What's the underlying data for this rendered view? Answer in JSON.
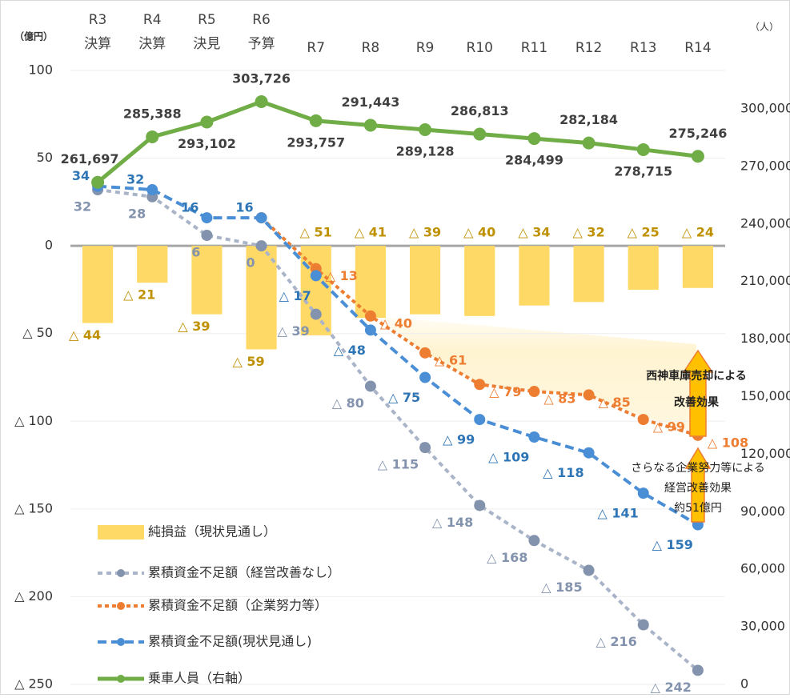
{
  "chart_data": {
    "type": "combo",
    "unit_left": "（億円）",
    "unit_right": "（人）",
    "categories": [
      "R3",
      "R4",
      "R5",
      "R6",
      "R7",
      "R8",
      "R9",
      "R10",
      "R11",
      "R12",
      "R13",
      "R14"
    ],
    "category_sublabels": [
      "決算",
      "決算",
      "決見",
      "予算",
      null,
      null,
      null,
      null,
      null,
      null,
      null,
      null
    ],
    "ylim": [
      -250,
      100
    ],
    "yticks": [
      100,
      50,
      0,
      {
        "value": -50,
        "label": "△ 50"
      },
      {
        "value": -100,
        "label": "△ 100"
      },
      {
        "value": -150,
        "label": "△ 150"
      },
      {
        "value": -200,
        "label": "△ 200"
      },
      {
        "value": -250,
        "label": "△ 250"
      }
    ],
    "y2lim": [
      0,
      320000
    ],
    "y2ticks": [
      0,
      {
        "value": 30000,
        "label": "30,000"
      },
      {
        "value": 60000,
        "label": "60,000"
      },
      {
        "value": 90000,
        "label": "90,000"
      },
      {
        "value": 120000,
        "label": "120,000"
      },
      {
        "value": 150000,
        "label": "150,000"
      },
      {
        "value": 180000,
        "label": "180,000"
      },
      {
        "value": 210000,
        "label": "210,000"
      },
      {
        "value": 240000,
        "label": "240,000"
      },
      {
        "value": 270000,
        "label": "270,000"
      },
      {
        "value": 300000,
        "label": "300,000"
      }
    ],
    "grid": true,
    "series": [
      {
        "name": "純損益（現状見通し）",
        "type": "bar",
        "color": "#ffd966",
        "label_color": "#bf9000",
        "values": [
          -44,
          -21,
          -39,
          -59,
          -51,
          -41,
          -39,
          -40,
          -34,
          -32,
          -25,
          -24
        ],
        "value_labels": [
          "△ 44",
          "△ 21",
          "△ 39",
          "△ 59",
          "△ 51",
          "△ 41",
          "△ 39",
          "△ 40",
          "△ 34",
          "△ 32",
          "△ 25",
          "△ 24"
        ]
      },
      {
        "name": "累積資金不足額（経営改善なし）",
        "type": "line",
        "color": "#a9b4c8",
        "marker_color": "#8393ad",
        "label_color": "#8393ad",
        "dash": "6,5",
        "values": [
          32,
          28,
          6,
          0,
          -39,
          -80,
          -115,
          -148,
          -168,
          -185,
          -216,
          -242
        ],
        "value_labels": [
          "32",
          "28",
          "6",
          "0",
          "△ 39",
          "△ 80",
          "△ 115",
          "△ 148",
          "△ 168",
          "△ 185",
          "△ 216",
          "△ 242"
        ]
      },
      {
        "name": "累積資金不足額（企業努力等）",
        "type": "line",
        "color": "#ed7d31",
        "marker_color": "#ed7d31",
        "label_color": "#ed7d31",
        "dash": "5,4",
        "values": [
          null,
          null,
          null,
          16,
          -13,
          -40,
          -61,
          -79,
          -83,
          -85,
          -99,
          -108
        ],
        "value_labels": [
          null,
          null,
          null,
          null,
          "△ 13",
          "△ 40",
          "△ 61",
          "△ 79",
          "△ 83",
          "△ 85",
          "△ 99",
          "△ 108"
        ]
      },
      {
        "name": "累積資金不足額(現状見通し)",
        "type": "line",
        "color": "#4a8fd6",
        "marker_color": "#4a8fd6",
        "label_color": "#2e75b6",
        "dash": "11,6",
        "values": [
          34,
          32,
          16,
          16,
          -17,
          -48,
          -75,
          -99,
          -109,
          -118,
          -141,
          -159
        ],
        "value_labels": [
          "34",
          "32",
          "16",
          "16",
          "△ 17",
          "△ 48",
          "△ 75",
          "△ 99",
          "△ 109",
          "△ 118",
          "△ 141",
          "△ 159"
        ]
      },
      {
        "name": "乗車人員（右軸）",
        "type": "line",
        "axis": "y2",
        "color": "#70ad47",
        "marker_color": "#70ad47",
        "label_color": "#404040",
        "dash": null,
        "values": [
          261697,
          285388,
          293102,
          303726,
          293757,
          291443,
          289128,
          286813,
          284499,
          282184,
          278715,
          275246
        ],
        "value_labels": [
          "261,697",
          "285,388",
          "293,102",
          "303,726",
          "293,757",
          "291,443",
          "289,128",
          "286,813",
          "284,499",
          "282,184",
          "278,715",
          "275,246"
        ]
      }
    ],
    "annotations": [
      "西神車庫売却による",
      "改善効果",
      "さらなる企業努力等による",
      "経営改善効果",
      "約51億円"
    ]
  }
}
